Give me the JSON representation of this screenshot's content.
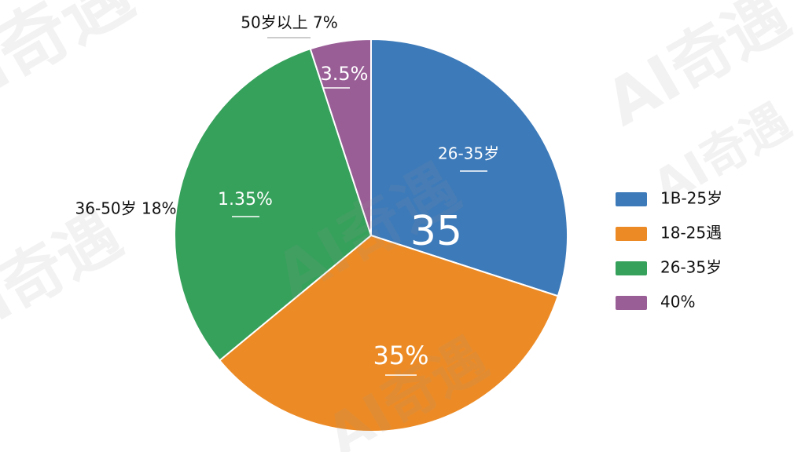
{
  "chart_data": {
    "type": "pie",
    "categories": [
      "1B-25岁",
      "18-25遇",
      "26-35岁",
      "40%"
    ],
    "values": [
      30,
      34,
      31,
      5
    ],
    "colors": [
      "#3d7ab9",
      "#ec8b26",
      "#36a15b",
      "#9a5e97"
    ],
    "legend": "right",
    "annotations": [
      "26-35岁",
      "35",
      "35%",
      "1.35%",
      "3.5%",
      "50岁以上 7%",
      "36-50岁 18%"
    ],
    "watermark": "AI奇遇"
  }
}
